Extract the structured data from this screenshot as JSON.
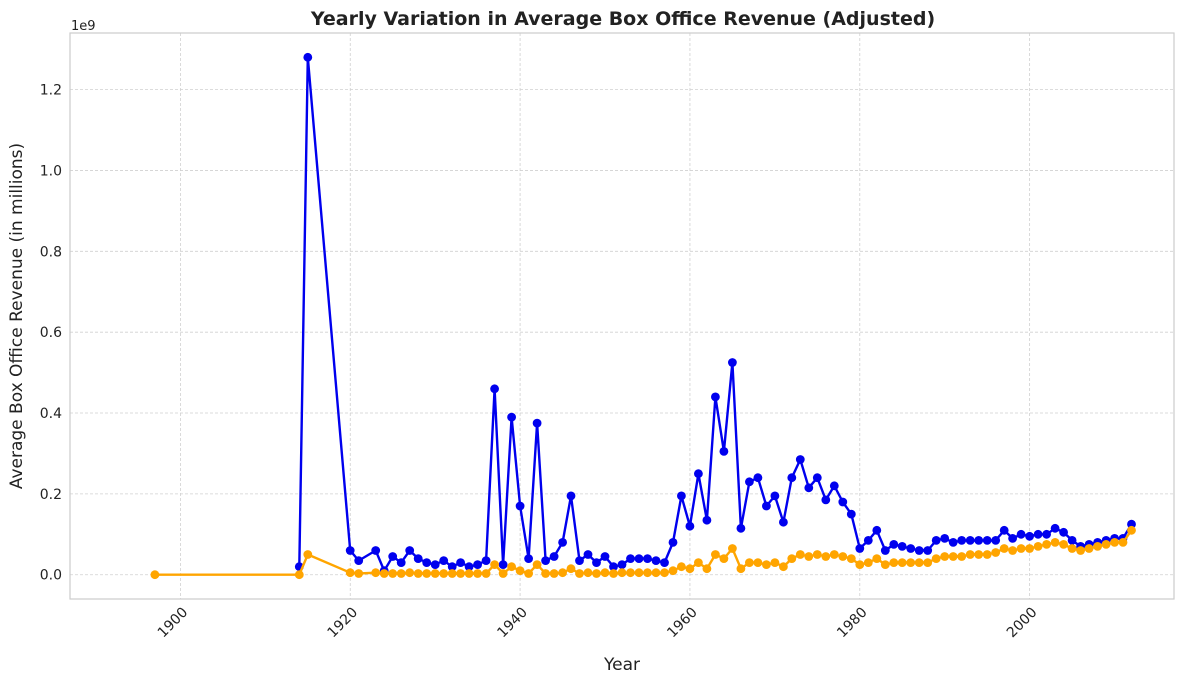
{
  "chart_data": {
    "type": "line",
    "title": "Yearly Variation in Average Box Office Revenue (Adjusted)",
    "xlabel": "Year",
    "ylabel": "Average Box Office Revenue (in millions)",
    "y_offset_label": "1e9",
    "xlim": [
      1887,
      2017
    ],
    "ylim": [
      -0.06,
      1.34
    ],
    "x_ticks": [
      1900,
      1920,
      1940,
      1960,
      1980,
      2000
    ],
    "x_tick_labels": [
      "1900",
      "1920",
      "1940",
      "1960",
      "1980",
      "2000"
    ],
    "y_ticks": [
      0.0,
      0.2,
      0.4,
      0.6,
      0.8,
      1.0,
      1.2
    ],
    "y_tick_labels": [
      "0.0",
      "0.2",
      "0.4",
      "0.6",
      "0.8",
      "1.0",
      "1.2"
    ],
    "grid": true,
    "series": [
      {
        "color": "#0000ee",
        "x": [
          1914,
          1915,
          1920,
          1921,
          1923,
          1924,
          1925,
          1926,
          1927,
          1928,
          1929,
          1930,
          1931,
          1932,
          1933,
          1934,
          1935,
          1936,
          1937,
          1938,
          1939,
          1940,
          1941,
          1942,
          1943,
          1944,
          1945,
          1946,
          1947,
          1948,
          1949,
          1950,
          1951,
          1952,
          1953,
          1954,
          1955,
          1956,
          1957,
          1958,
          1959,
          1960,
          1961,
          1962,
          1963,
          1964,
          1965,
          1966,
          1967,
          1968,
          1969,
          1970,
          1971,
          1972,
          1973,
          1974,
          1975,
          1976,
          1977,
          1978,
          1979,
          1980,
          1981,
          1982,
          1983,
          1984,
          1985,
          1986,
          1987,
          1988,
          1989,
          1990,
          1991,
          1992,
          1993,
          1994,
          1995,
          1996,
          1997,
          1998,
          1999,
          2000,
          2001,
          2002,
          2003,
          2004,
          2005,
          2006,
          2007,
          2008,
          2009,
          2010,
          2011,
          2012
        ],
        "y": [
          0.02,
          1.28,
          0.06,
          0.035,
          0.06,
          0.01,
          0.045,
          0.03,
          0.06,
          0.04,
          0.03,
          0.025,
          0.035,
          0.02,
          0.03,
          0.02,
          0.025,
          0.035,
          0.46,
          0.025,
          0.39,
          0.17,
          0.04,
          0.375,
          0.035,
          0.045,
          0.08,
          0.195,
          0.035,
          0.05,
          0.03,
          0.045,
          0.02,
          0.025,
          0.04,
          0.04,
          0.04,
          0.035,
          0.03,
          0.08,
          0.195,
          0.12,
          0.25,
          0.135,
          0.44,
          0.305,
          0.525,
          0.115,
          0.23,
          0.24,
          0.17,
          0.195,
          0.13,
          0.24,
          0.285,
          0.215,
          0.24,
          0.185,
          0.22,
          0.18,
          0.15,
          0.065,
          0.085,
          0.11,
          0.06,
          0.075,
          0.07,
          0.065,
          0.06,
          0.06,
          0.085,
          0.09,
          0.08,
          0.085,
          0.085,
          0.085,
          0.085,
          0.085,
          0.11,
          0.09,
          0.1,
          0.095,
          0.1,
          0.1,
          0.115,
          0.105,
          0.085,
          0.07,
          0.075,
          0.08,
          0.085,
          0.09,
          0.09,
          0.125
        ]
      },
      {
        "color": "#ffa500",
        "x": [
          1897,
          1914,
          1915,
          1920,
          1921,
          1923,
          1924,
          1925,
          1926,
          1927,
          1928,
          1929,
          1930,
          1931,
          1932,
          1933,
          1934,
          1935,
          1936,
          1937,
          1938,
          1939,
          1940,
          1941,
          1942,
          1943,
          1944,
          1945,
          1946,
          1947,
          1948,
          1949,
          1950,
          1951,
          1952,
          1953,
          1954,
          1955,
          1956,
          1957,
          1958,
          1959,
          1960,
          1961,
          1962,
          1963,
          1964,
          1965,
          1966,
          1967,
          1968,
          1969,
          1970,
          1971,
          1972,
          1973,
          1974,
          1975,
          1976,
          1977,
          1978,
          1979,
          1980,
          1981,
          1982,
          1983,
          1984,
          1985,
          1986,
          1987,
          1988,
          1989,
          1990,
          1991,
          1992,
          1993,
          1994,
          1995,
          1996,
          1997,
          1998,
          1999,
          2000,
          2001,
          2002,
          2003,
          2004,
          2005,
          2006,
          2007,
          2008,
          2009,
          2010,
          2011,
          2012
        ],
        "y": [
          0.0,
          0.0,
          0.05,
          0.005,
          0.003,
          0.005,
          0.003,
          0.003,
          0.003,
          0.005,
          0.003,
          0.003,
          0.003,
          0.003,
          0.003,
          0.003,
          0.003,
          0.003,
          0.003,
          0.025,
          0.003,
          0.02,
          0.01,
          0.003,
          0.025,
          0.003,
          0.003,
          0.005,
          0.015,
          0.003,
          0.005,
          0.003,
          0.005,
          0.003,
          0.005,
          0.005,
          0.005,
          0.005,
          0.005,
          0.005,
          0.01,
          0.02,
          0.015,
          0.03,
          0.015,
          0.05,
          0.04,
          0.065,
          0.015,
          0.03,
          0.03,
          0.025,
          0.03,
          0.02,
          0.04,
          0.05,
          0.045,
          0.05,
          0.045,
          0.05,
          0.045,
          0.04,
          0.025,
          0.03,
          0.04,
          0.025,
          0.03,
          0.03,
          0.03,
          0.03,
          0.03,
          0.04,
          0.045,
          0.045,
          0.045,
          0.05,
          0.05,
          0.05,
          0.055,
          0.065,
          0.06,
          0.065,
          0.065,
          0.07,
          0.075,
          0.08,
          0.075,
          0.065,
          0.06,
          0.065,
          0.07,
          0.075,
          0.08,
          0.08,
          0.11
        ]
      }
    ]
  }
}
